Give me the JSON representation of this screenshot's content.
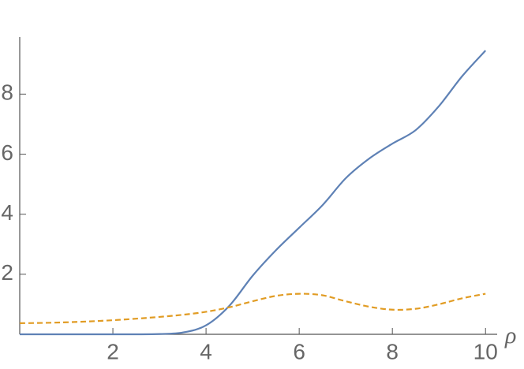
{
  "chart_data": {
    "type": "line",
    "x_label": "ρ",
    "x": [
      0,
      0.5,
      1,
      1.5,
      2,
      2.5,
      3,
      3.5,
      4,
      4.5,
      5,
      5.5,
      6,
      6.5,
      7,
      7.5,
      8,
      8.5,
      9,
      9.5,
      10
    ],
    "series": [
      {
        "color": "#5e81b5",
        "dashed": false,
        "values": [
          0,
          0,
          0,
          0,
          0,
          0,
          0.01,
          0.06,
          0.3,
          0.95,
          1.95,
          2.8,
          3.55,
          4.3,
          5.2,
          5.85,
          6.35,
          6.8,
          7.6,
          8.6,
          9.45
        ]
      },
      {
        "color": "#e19c24",
        "dashed": true,
        "values": [
          0.37,
          0.38,
          0.4,
          0.43,
          0.47,
          0.52,
          0.58,
          0.65,
          0.75,
          0.9,
          1.1,
          1.28,
          1.35,
          1.3,
          1.1,
          0.92,
          0.82,
          0.85,
          1.0,
          1.2,
          1.35
        ]
      }
    ],
    "xlim": [
      0,
      10.25
    ],
    "ylim": [
      0,
      9.9
    ],
    "xticks": [
      2,
      4,
      6,
      8,
      10
    ],
    "yticks": [
      2,
      4,
      6,
      8
    ]
  }
}
